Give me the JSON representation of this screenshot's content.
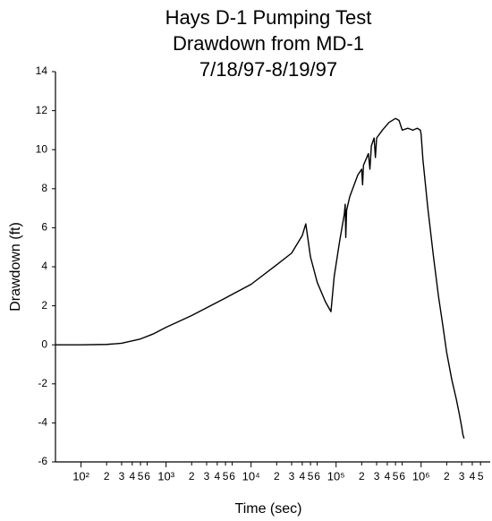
{
  "chart_data": {
    "type": "line",
    "title": [
      "Hays D-1 Pumping Test",
      "Drawdown from MD-1",
      "7/18/97-8/19/97"
    ],
    "x_label": "Time (sec)",
    "y_label": "Drawdown (ft)",
    "log_x": true,
    "color": "#000000",
    "xlim": [
      50,
      6500000
    ],
    "ylim": [
      -6,
      14
    ],
    "yticks": [
      -6,
      -4,
      -2,
      0,
      2,
      4,
      6,
      8,
      10,
      12,
      14
    ],
    "xticks": [
      {
        "value": 100,
        "label": "10²"
      },
      {
        "value": 200,
        "label": "2"
      },
      {
        "value": 300,
        "label": "3"
      },
      {
        "value": 400,
        "label": "4"
      },
      {
        "value": 500,
        "label": "5"
      },
      {
        "value": 600,
        "label": "6"
      },
      {
        "value": 1000,
        "label": "10³"
      },
      {
        "value": 2000,
        "label": "2"
      },
      {
        "value": 3000,
        "label": "3"
      },
      {
        "value": 4000,
        "label": "4"
      },
      {
        "value": 5000,
        "label": "5"
      },
      {
        "value": 6000,
        "label": "6"
      },
      {
        "value": 10000,
        "label": "10⁴"
      },
      {
        "value": 20000,
        "label": "2"
      },
      {
        "value": 30000,
        "label": "3"
      },
      {
        "value": 40000,
        "label": "4"
      },
      {
        "value": 50000,
        "label": "5"
      },
      {
        "value": 60000,
        "label": "6"
      },
      {
        "value": 100000,
        "label": "10⁵"
      },
      {
        "value": 200000,
        "label": "2"
      },
      {
        "value": 300000,
        "label": "3"
      },
      {
        "value": 400000,
        "label": "4"
      },
      {
        "value": 500000,
        "label": "5"
      },
      {
        "value": 600000,
        "label": "6"
      },
      {
        "value": 1000000,
        "label": "10⁶"
      },
      {
        "value": 2000000,
        "label": "2"
      },
      {
        "value": 3000000,
        "label": "3"
      },
      {
        "value": 4000000,
        "label": "4"
      },
      {
        "value": 5000000,
        "label": "5"
      }
    ],
    "x": [
      50,
      100,
      200,
      300,
      500,
      700,
      1000,
      2000,
      5000,
      10000,
      20000,
      30000,
      40000,
      44000,
      50000,
      60000,
      75000,
      87000,
      95000,
      110000,
      125000,
      128000,
      130000,
      133000,
      145000,
      180000,
      200000,
      205000,
      210000,
      240000,
      250000,
      260000,
      280000,
      290000,
      300000,
      350000,
      420000,
      500000,
      550000,
      600000,
      700000,
      800000,
      900000,
      980000,
      1000000,
      1050000,
      1200000,
      1400000,
      1600000,
      1800000,
      2000000,
      2300000,
      2600000,
      2800000,
      3000000,
      3100000,
      3200000
    ],
    "values": [
      0,
      0,
      0.02,
      0.08,
      0.3,
      0.55,
      0.9,
      1.5,
      2.4,
      3.1,
      4.1,
      4.7,
      5.6,
      6.2,
      4.5,
      3.2,
      2.2,
      1.7,
      3.5,
      5.3,
      6.7,
      7.2,
      5.5,
      6.9,
      7.6,
      8.7,
      9.0,
      8.2,
      9.2,
      9.8,
      9.0,
      10.2,
      10.6,
      9.6,
      10.6,
      11.0,
      11.4,
      11.6,
      11.5,
      11.0,
      11.1,
      11.0,
      11.1,
      11.0,
      10.8,
      9.5,
      7.0,
      4.5,
      2.5,
      1.0,
      -0.4,
      -1.8,
      -2.8,
      -3.5,
      -4.2,
      -4.6,
      -4.8
    ]
  }
}
